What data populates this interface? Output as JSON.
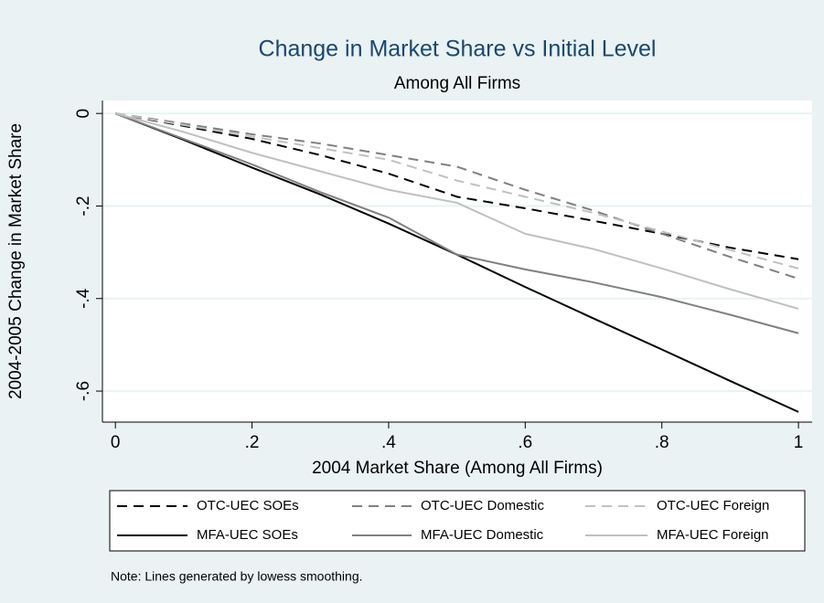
{
  "chart_data": {
    "type": "line",
    "title": "Change in Market Share vs Initial Level",
    "subtitle": "Among All Firms",
    "x_label": "2004 Market Share (Among All Firms)",
    "y_label": "2004-2005 Change in Market Share",
    "note": "Note: Lines generated by lowess smoothing.",
    "x": [
      0,
      0.1,
      0.2,
      0.3,
      0.4,
      0.5,
      0.6,
      0.7,
      0.8,
      0.9,
      1
    ],
    "series": [
      {
        "name": "OTC-UEC SOEs",
        "color": "#000000",
        "line_style": "dashed",
        "values": [
          0,
          -0.027,
          -0.055,
          -0.09,
          -0.13,
          -0.18,
          -0.205,
          -0.232,
          -0.26,
          -0.29,
          -0.315
        ]
      },
      {
        "name": "OTC-UEC Domestic",
        "color": "#808080",
        "line_style": "dashed",
        "values": [
          0,
          -0.022,
          -0.045,
          -0.065,
          -0.09,
          -0.115,
          -0.165,
          -0.21,
          -0.26,
          -0.31,
          -0.357
        ]
      },
      {
        "name": "OTC-UEC Foreign",
        "color": "#c0c0c0",
        "line_style": "dashed",
        "values": [
          0,
          -0.025,
          -0.05,
          -0.075,
          -0.1,
          -0.145,
          -0.18,
          -0.215,
          -0.255,
          -0.295,
          -0.335
        ]
      },
      {
        "name": "MFA-UEC SOEs",
        "color": "#000000",
        "line_style": "solid",
        "values": [
          0,
          -0.057,
          -0.117,
          -0.175,
          -0.238,
          -0.305,
          -0.375,
          -0.443,
          -0.51,
          -0.578,
          -0.645
        ]
      },
      {
        "name": "MFA-UEC Domestic",
        "color": "#808080",
        "line_style": "solid",
        "values": [
          0,
          -0.055,
          -0.11,
          -0.17,
          -0.225,
          -0.305,
          -0.337,
          -0.365,
          -0.397,
          -0.435,
          -0.475
        ]
      },
      {
        "name": "MFA-UEC Foreign",
        "color": "#c0c0c0",
        "line_style": "solid",
        "values": [
          0,
          -0.04,
          -0.085,
          -0.125,
          -0.165,
          -0.193,
          -0.26,
          -0.293,
          -0.335,
          -0.38,
          -0.422
        ]
      }
    ],
    "xlim": [
      -0.019,
      1.02
    ],
    "ylim": [
      -0.667,
      0.028
    ],
    "xticks": [
      0,
      {
        "value": 0.2,
        "label": ".2"
      },
      {
        "value": 0.4,
        "label": ".4"
      },
      {
        "value": 0.6,
        "label": ".6"
      },
      {
        "value": 0.8,
        "label": ".8"
      },
      1
    ],
    "yticks": [
      0,
      {
        "value": -0.2,
        "label": "-.2"
      },
      {
        "value": -0.4,
        "label": "-.4"
      },
      {
        "value": -0.6,
        "label": "-.6"
      }
    ],
    "grid": true,
    "legend_position": "bottom"
  }
}
